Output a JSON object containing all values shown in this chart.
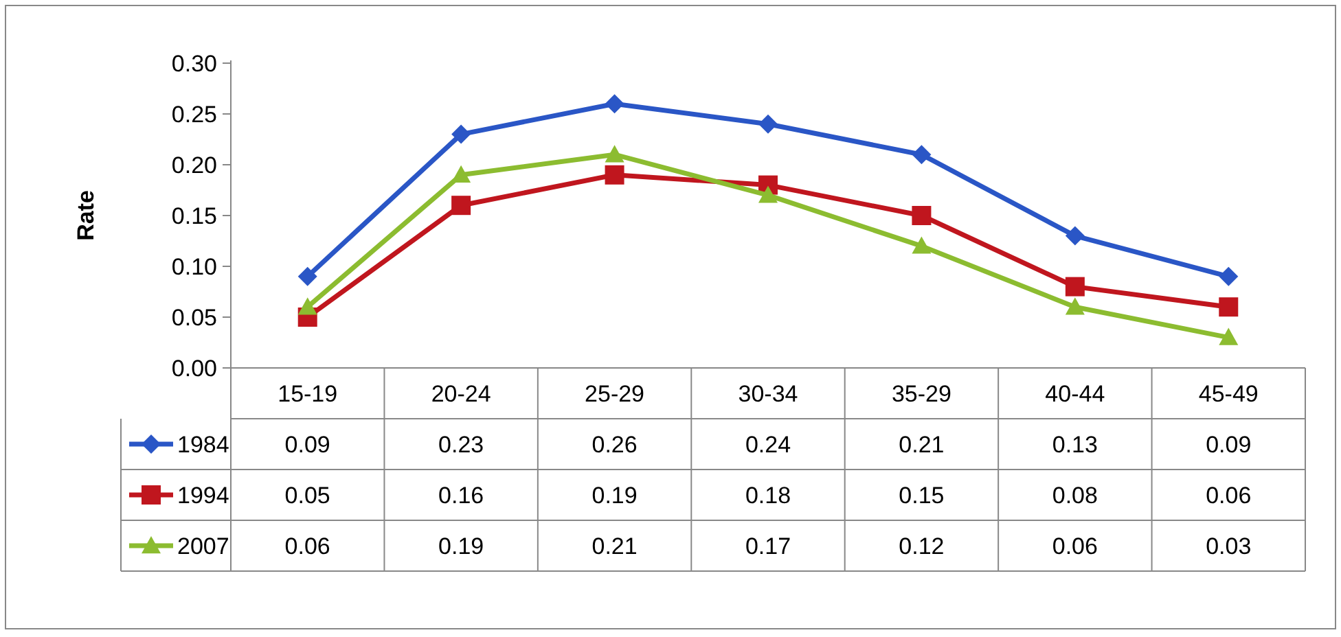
{
  "chart_data": {
    "type": "line",
    "ylabel": "Rate",
    "categories": [
      "15-19",
      "20-24",
      "25-29",
      "30-34",
      "35-29",
      "40-44",
      "45-49"
    ],
    "series": [
      {
        "name": "1984",
        "color": "#2a56c6",
        "marker": "diamond",
        "values": [
          0.09,
          0.23,
          0.26,
          0.24,
          0.21,
          0.13,
          0.09
        ]
      },
      {
        "name": "1994",
        "color": "#c0161e",
        "marker": "square",
        "values": [
          0.05,
          0.16,
          0.19,
          0.18,
          0.15,
          0.08,
          0.06
        ]
      },
      {
        "name": "2007",
        "color": "#8cbc30",
        "marker": "triangle",
        "values": [
          0.06,
          0.19,
          0.21,
          0.17,
          0.12,
          0.06,
          0.03
        ]
      }
    ],
    "ylim": [
      0,
      0.3
    ],
    "yticks": [
      {
        "value": 0,
        "label": "0.00"
      },
      {
        "value": 0.05,
        "label": "0.05"
      },
      {
        "value": 0.1,
        "label": "0.10"
      },
      {
        "value": 0.15,
        "label": "0.15"
      },
      {
        "value": 0.2,
        "label": "0.20"
      },
      {
        "value": 0.25,
        "label": "0.25"
      },
      {
        "value": 0.3,
        "label": "0.30"
      }
    ],
    "data_labels": true,
    "legend": "bottom left",
    "line_style": "solid"
  }
}
